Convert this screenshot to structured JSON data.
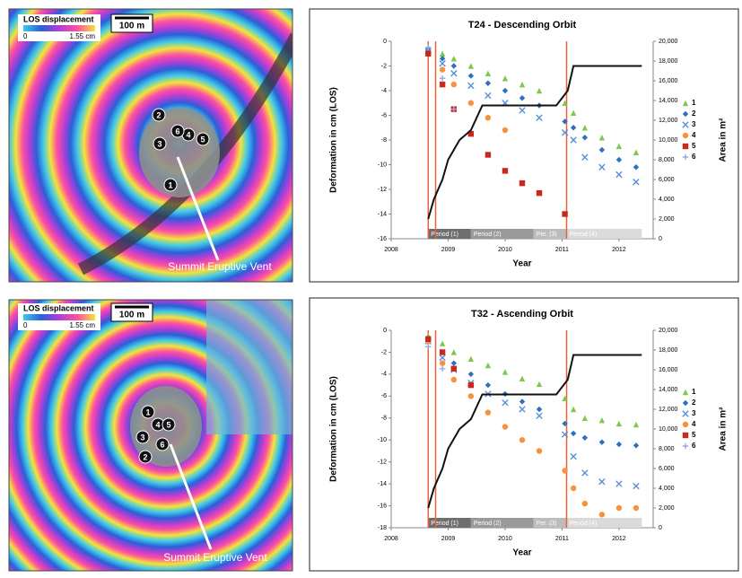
{
  "panels": [
    {
      "legend_title": "LOS displacement",
      "legend_min": "0",
      "legend_max": "1.55 cm",
      "scale": "100 m",
      "vent_label": "Summit Eruptive Vent",
      "points": [
        "1",
        "2",
        "3",
        "4",
        "5",
        "6"
      ]
    },
    {
      "legend_title": "LOS displacement",
      "legend_min": "0",
      "legend_max": "1.55 cm",
      "scale": "100 m",
      "vent_label": "Summit Eruptive Vent",
      "points": [
        "1",
        "2",
        "3",
        "4",
        "5",
        "6"
      ]
    }
  ],
  "chart_data": [
    {
      "type": "scatter",
      "title": "T24 - Descending Orbit",
      "x_label": "Year",
      "y_label": "Deformation in cm (LOS)",
      "y2_label": "Area in m²",
      "xlim": [
        2008,
        2012.6
      ],
      "xticks": [
        2008,
        2009,
        2010,
        2011,
        2012
      ],
      "ylim": [
        -16,
        0
      ],
      "yticks": [
        -16,
        -14,
        -12,
        -10,
        -8,
        -6,
        -4,
        -2,
        0
      ],
      "y2lim": [
        0,
        20000
      ],
      "y2ticks": [
        0,
        {
          "value": 2000,
          "label": "2,000"
        },
        {
          "value": 4000,
          "label": "4,000"
        },
        {
          "value": 6000,
          "label": "6,000"
        },
        {
          "value": 8000,
          "label": "8,000"
        },
        {
          "value": 10000,
          "label": "10,000"
        },
        {
          "value": 12000,
          "label": "12,000"
        },
        {
          "value": 14000,
          "label": "14,000"
        },
        {
          "value": 16000,
          "label": "16,000"
        },
        {
          "value": 18000,
          "label": "18,000"
        },
        {
          "value": 20000,
          "label": "20,000"
        }
      ],
      "vlines": [
        2008.65,
        2008.78,
        2011.08
      ],
      "vline_color": "#e8603c",
      "periods": [
        {
          "label": "Period (1)",
          "start": 2008.65,
          "end": 2009.4,
          "color": "#6e6e6e"
        },
        {
          "label": "Period (2)",
          "start": 2009.4,
          "end": 2010.5,
          "color": "#9a9a9a"
        },
        {
          "label": "Per. (3)",
          "start": 2010.5,
          "end": 2011.08,
          "color": "#bcbcbc"
        },
        {
          "label": "Period (4)",
          "start": 2011.08,
          "end": 2012.4,
          "color": "#dadada"
        }
      ],
      "x": [
        2008.65,
        2008.9,
        2009.1,
        2009.4,
        2009.7,
        2010.0,
        2010.3,
        2010.6,
        2011.05,
        2011.2,
        2011.4,
        2011.7,
        2012.0,
        2012.3
      ],
      "series": [
        {
          "name": "1",
          "color": "#7ec850",
          "marker": "triangle",
          "values": [
            -0.5,
            -1.0,
            -1.4,
            -2.0,
            -2.6,
            -3.0,
            -3.5,
            -4.0,
            -5.0,
            -5.8,
            -7.0,
            -7.8,
            -8.5,
            -9.0
          ]
        },
        {
          "name": "2",
          "color": "#2f6fbf",
          "marker": "diamond",
          "values": [
            -0.7,
            -1.4,
            -2.0,
            -2.8,
            -3.4,
            -4.0,
            -4.6,
            -5.2,
            -6.5,
            -7.0,
            -7.8,
            -8.8,
            -9.6,
            -10.2
          ]
        },
        {
          "name": "3",
          "color": "#5a8fd6",
          "marker": "x",
          "values": [
            -0.8,
            -1.8,
            -2.6,
            -3.6,
            -4.4,
            -5.0,
            -5.6,
            -6.2,
            -7.4,
            -8.0,
            -9.4,
            -10.2,
            -10.8,
            -11.4
          ]
        },
        {
          "name": "4",
          "color": "#f5923e",
          "marker": "circle",
          "values": [
            -1.0,
            -2.3,
            -3.5,
            -5.0,
            -6.2,
            -7.2,
            null,
            null,
            null,
            null,
            null,
            null,
            null,
            null
          ]
        },
        {
          "name": "5",
          "color": "#c8281e",
          "marker": "square",
          "values": [
            -1.0,
            -3.5,
            -5.5,
            -7.5,
            -9.2,
            -10.5,
            -11.5,
            -12.3,
            -14.0,
            null,
            null,
            null,
            null,
            null
          ]
        },
        {
          "name": "6",
          "color": "#9aa8e0",
          "marker": "plus",
          "values": [
            -0.5,
            -3.0,
            -5.5,
            null,
            null,
            null,
            null,
            null,
            null,
            null,
            null,
            null,
            null,
            null
          ]
        },
        {
          "type": "line",
          "axis": "y2",
          "color": "#111111",
          "x": [
            2008.65,
            2008.75,
            2008.9,
            2009.0,
            2009.2,
            2009.4,
            2009.6,
            2010.9,
            2011.1,
            2011.2,
            2012.4
          ],
          "values": [
            2000,
            4000,
            6000,
            8000,
            10000,
            11000,
            13500,
            13500,
            15000,
            17500,
            17500
          ]
        }
      ]
    },
    {
      "type": "scatter",
      "title": "T32 - Ascending Orbit",
      "x_label": "Year",
      "y_label": "Deformation in cm (LOS)",
      "y2_label": "Area in m²",
      "xlim": [
        2008,
        2012.6
      ],
      "xticks": [
        2008,
        2009,
        2010,
        2011,
        2012
      ],
      "ylim": [
        -18,
        0
      ],
      "yticks": [
        -18,
        -16,
        -14,
        -12,
        -10,
        -8,
        -6,
        -4,
        -2,
        0
      ],
      "y2lim": [
        0,
        20000
      ],
      "y2ticks": [
        0,
        {
          "value": 2000,
          "label": "2,000"
        },
        {
          "value": 4000,
          "label": "4,000"
        },
        {
          "value": 6000,
          "label": "6,000"
        },
        {
          "value": 8000,
          "label": "8,000"
        },
        {
          "value": 10000,
          "label": "10,000"
        },
        {
          "value": 12000,
          "label": "12,000"
        },
        {
          "value": 14000,
          "label": "14,000"
        },
        {
          "value": 16000,
          "label": "16,000"
        },
        {
          "value": 18000,
          "label": "18,000"
        },
        {
          "value": 20000,
          "label": "20,000"
        }
      ],
      "vlines": [
        2008.65,
        2008.78,
        2011.08
      ],
      "vline_color": "#e8603c",
      "periods": [
        {
          "label": "Period (1)",
          "start": 2008.65,
          "end": 2009.4,
          "color": "#6e6e6e"
        },
        {
          "label": "Period (2)",
          "start": 2009.4,
          "end": 2010.5,
          "color": "#9a9a9a"
        },
        {
          "label": "Per. (3)",
          "start": 2010.5,
          "end": 2011.08,
          "color": "#bcbcbc"
        },
        {
          "label": "Period (4)",
          "start": 2011.08,
          "end": 2012.4,
          "color": "#dadada"
        }
      ],
      "x": [
        2008.65,
        2008.9,
        2009.1,
        2009.4,
        2009.7,
        2010.0,
        2010.3,
        2010.6,
        2011.05,
        2011.2,
        2011.4,
        2011.7,
        2012.0,
        2012.3
      ],
      "series": [
        {
          "name": "1",
          "color": "#7ec850",
          "marker": "triangle",
          "values": [
            -0.5,
            -1.2,
            -2.0,
            -2.6,
            -3.2,
            -3.8,
            -4.4,
            -4.9,
            -6.2,
            -7.2,
            -8.0,
            -8.2,
            -8.5,
            -8.6
          ]
        },
        {
          "name": "2",
          "color": "#2f6fbf",
          "marker": "diamond",
          "values": [
            -0.8,
            -2.0,
            -3.0,
            -4.0,
            -5.0,
            -5.8,
            -6.5,
            -7.2,
            -8.5,
            -9.4,
            -9.8,
            -10.2,
            -10.4,
            -10.5
          ]
        },
        {
          "name": "3",
          "color": "#5a8fd6",
          "marker": "x",
          "values": [
            -1.0,
            -2.5,
            -3.6,
            -4.8,
            -5.8,
            -6.6,
            -7.2,
            -7.8,
            -9.5,
            -11.5,
            -13.0,
            -13.8,
            -14.0,
            -14.2
          ]
        },
        {
          "name": "4",
          "color": "#f5923e",
          "marker": "circle",
          "values": [
            -1.0,
            -3.0,
            -4.5,
            -6.0,
            -7.5,
            -8.8,
            -10.0,
            -11.0,
            -12.8,
            -14.4,
            -15.8,
            -16.8,
            -16.2,
            -16.2
          ]
        },
        {
          "name": "5",
          "color": "#c8281e",
          "marker": "square",
          "values": [
            -0.8,
            -2.0,
            -3.5,
            -5.0,
            null,
            null,
            null,
            null,
            null,
            null,
            null,
            null,
            null,
            null
          ]
        },
        {
          "name": "6",
          "color": "#9aa8e0",
          "marker": "plus",
          "values": [
            -1.5,
            -3.5,
            null,
            null,
            null,
            null,
            null,
            null,
            null,
            null,
            null,
            null,
            null,
            null
          ]
        },
        {
          "type": "line",
          "axis": "y2",
          "color": "#111111",
          "x": [
            2008.65,
            2008.75,
            2008.9,
            2009.0,
            2009.2,
            2009.4,
            2009.6,
            2010.9,
            2011.1,
            2011.2,
            2012.4
          ],
          "values": [
            2000,
            4000,
            6000,
            8000,
            10000,
            11000,
            13500,
            13500,
            15000,
            17500,
            17500
          ]
        }
      ]
    }
  ]
}
